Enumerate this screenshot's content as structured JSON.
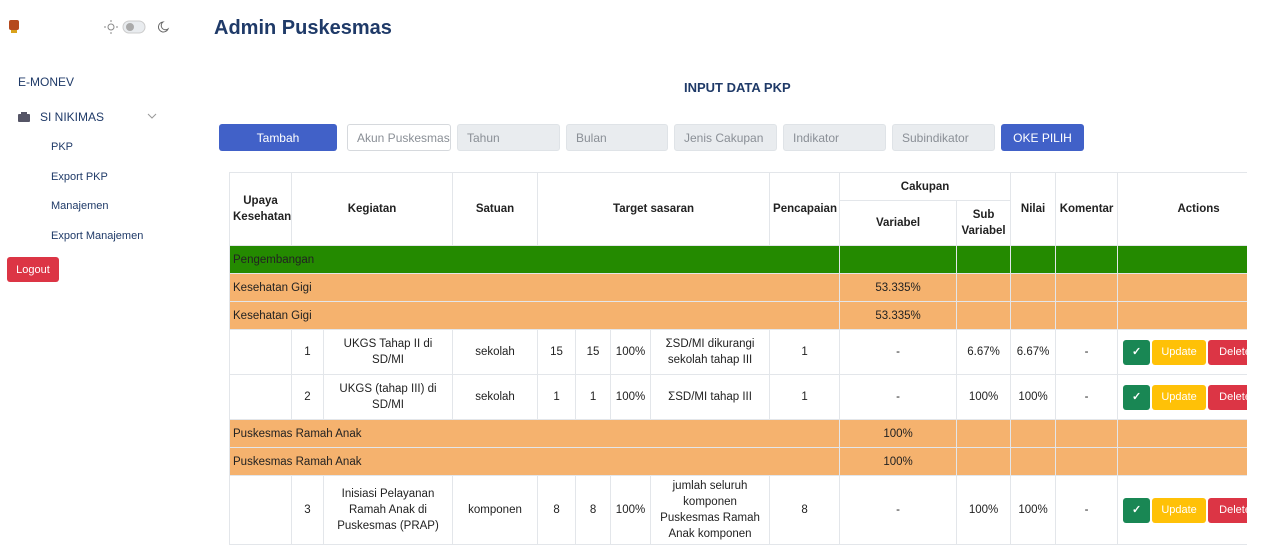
{
  "sidebar": {
    "brand": "E-MONEV",
    "menu": {
      "label": "SI NIKIMAS",
      "items": [
        "PKP",
        "Export PKP",
        "Manajemen",
        "Export Manajemen"
      ]
    },
    "logout": "Logout"
  },
  "header": {
    "title": "Admin Puskesmas"
  },
  "section_title": "INPUT DATA PKP",
  "toolbar": {
    "add": "Tambah",
    "filters": [
      "Akun Puskesmas",
      "Tahun",
      "Bulan",
      "Jenis Cakupan",
      "Indikator",
      "Subindikator"
    ],
    "submit": "OKE PILIH"
  },
  "table": {
    "headers": {
      "upaya": "Upaya Kesehatan",
      "kegiatan": "Kegiatan",
      "satuan": "Satuan",
      "target": "Target sasaran",
      "pencapaian": "Pencapaian",
      "cakupan": "Cakupan",
      "variabel": "Variabel",
      "sub_variabel": "Sub Variabel",
      "nilai": "Nilai",
      "komentar": "Komentar",
      "actions": "Actions"
    },
    "actions": {
      "confirm": "✓",
      "update": "Update",
      "delete": "Delete"
    },
    "rows": [
      {
        "kind": "group",
        "label": "Pengembangan",
        "color": "#248a00"
      },
      {
        "kind": "group",
        "label": "Kesehatan Gigi",
        "value": "53.335%",
        "color": "#f5b26e"
      },
      {
        "kind": "group",
        "label": "Kesehatan Gigi",
        "value": "53.335%",
        "color": "#f5b26e"
      },
      {
        "kind": "item",
        "no": "1",
        "kegiatan": "UKGS Tahap II di SD/MI",
        "satuan": "sekolah",
        "target": [
          "15",
          "15",
          "100%"
        ],
        "keterangan": "ΣSD/MI dikurangi sekolah tahap III",
        "pencapaian": "1",
        "variabel": "-",
        "sub_variabel": "6.67%",
        "nilai": "6.67%",
        "komentar": "-"
      },
      {
        "kind": "item",
        "no": "2",
        "kegiatan": "UKGS (tahap III) di SD/MI",
        "satuan": "sekolah",
        "target": [
          "1",
          "1",
          "100%"
        ],
        "keterangan": "ΣSD/MI tahap III",
        "pencapaian": "1",
        "variabel": "-",
        "sub_variabel": "100%",
        "nilai": "100%",
        "komentar": "-"
      },
      {
        "kind": "group",
        "label": "Puskesmas Ramah Anak",
        "value": "100%",
        "color": "#f5b26e"
      },
      {
        "kind": "group",
        "label": "Puskesmas Ramah Anak",
        "value": "100%",
        "color": "#f5b26e"
      },
      {
        "kind": "item",
        "no": "3",
        "kegiatan": "Inisiasi Pelayanan Ramah Anak di Puskesmas (PRAP)",
        "satuan": "komponen",
        "target": [
          "8",
          "8",
          "100%"
        ],
        "keterangan": "jumlah seluruh komponen Puskesmas Ramah Anak komponen",
        "pencapaian": "8",
        "variabel": "-",
        "sub_variabel": "100%",
        "nilai": "100%",
        "komentar": "-"
      }
    ]
  }
}
